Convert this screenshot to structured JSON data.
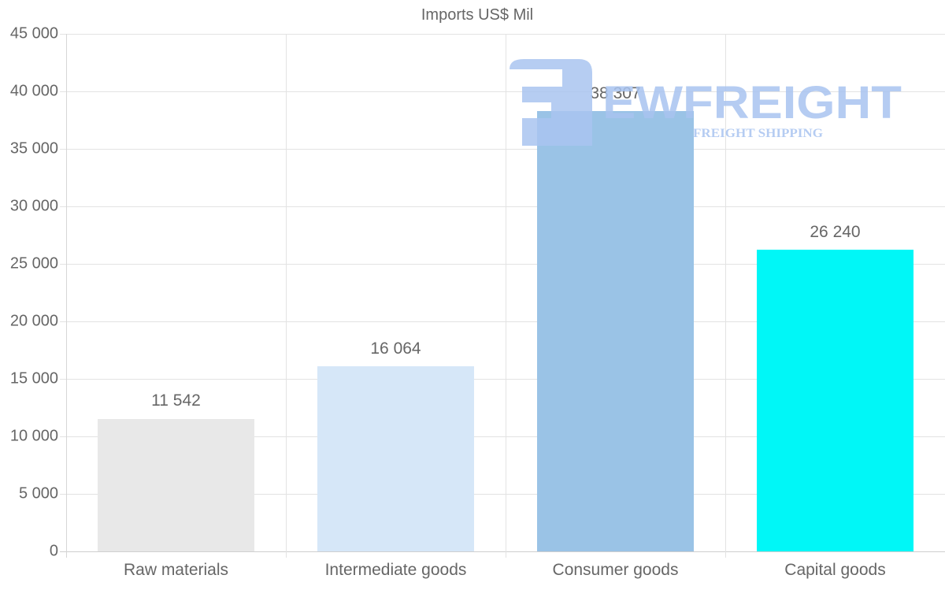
{
  "chart_data": {
    "type": "bar",
    "title": "Imports US$ Mil",
    "categories": [
      "Raw materials",
      "Intermediate goods",
      "Consumer goods",
      "Capital goods"
    ],
    "values": [
      11542,
      16064,
      38307,
      26240
    ],
    "value_labels": [
      "11 542",
      "16 064",
      "38 307",
      "26 240"
    ],
    "bar_colors": [
      "#e8e8e8",
      "#d6e7f8",
      "#9ac3e6",
      "#00f7f7"
    ],
    "xlabel": "",
    "ylabel": "",
    "ylim": [
      0,
      45000
    ],
    "yticks": [
      0,
      5000,
      10000,
      15000,
      20000,
      25000,
      30000,
      35000,
      40000,
      45000
    ],
    "ytick_labels": [
      "0",
      "5 000",
      "10 000",
      "15 000",
      "20 000",
      "25 000",
      "30 000",
      "35 000",
      "40 000",
      "45 000"
    ],
    "grid": true,
    "legend": "none"
  },
  "watermark": {
    "brand": "EWFREIGHT",
    "tagline": "FREIGHT SHIPPING",
    "color": "#a9c4f0"
  }
}
